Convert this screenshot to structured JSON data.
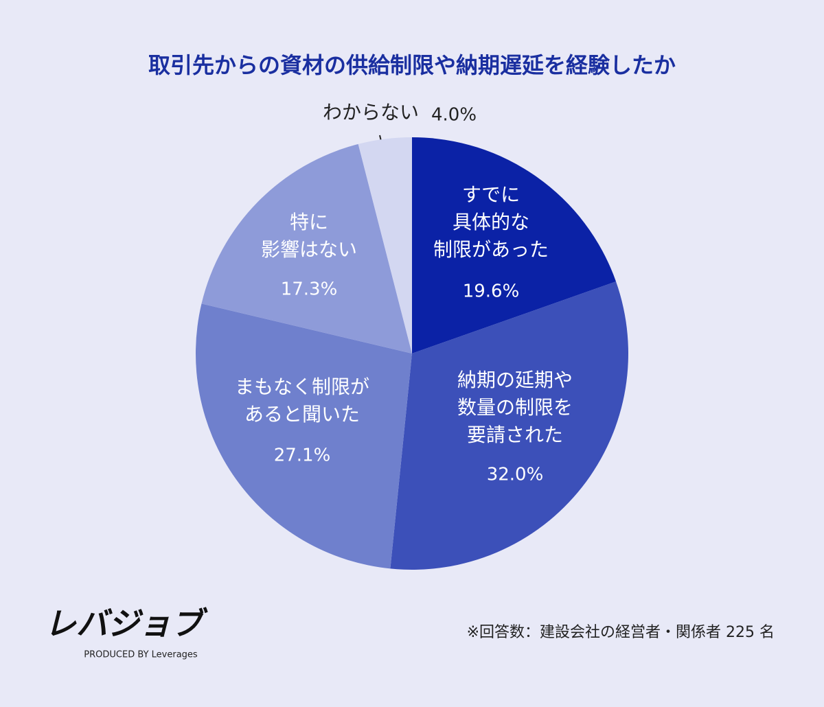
{
  "chart_data": {
    "type": "pie",
    "title": "取引先からの資材の供給制限や納期遅延を経験したか",
    "categories": [
      "すでに\n具体的な\n制限があった",
      "納期の延期や\n数量の制限を\n要請された",
      "まもなく制限が\nあると聞いた",
      "特に\n影響はない",
      "わからない"
    ],
    "values": [
      19.6,
      32.0,
      27.1,
      17.3,
      4.0
    ],
    "value_labels": [
      "19.6%",
      "32.0%",
      "27.1%",
      "17.3%",
      "4.0%"
    ],
    "colors": [
      "#0b22a6",
      "#3c50b9",
      "#6f80cd",
      "#8e9bd9",
      "#d3d7f1"
    ]
  },
  "footer": {
    "logo": "レバジョブ",
    "logo_sub": "PRODUCED BY Leverages",
    "note": "※回答数：建設会社の経営者・関係者 225 名"
  }
}
